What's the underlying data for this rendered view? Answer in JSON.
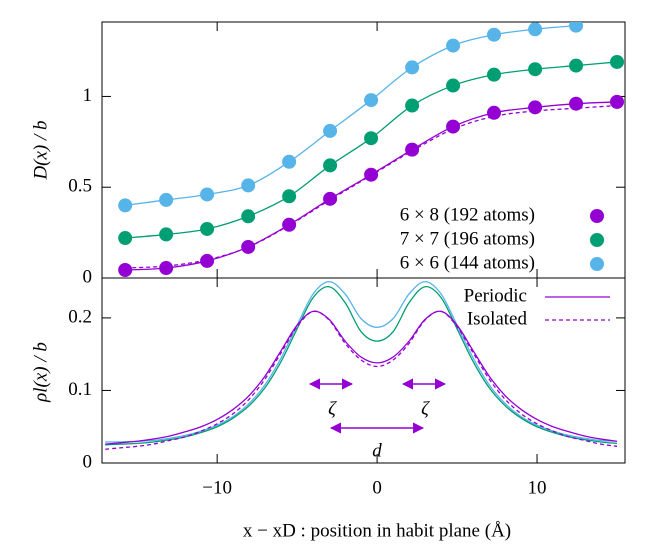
{
  "chart_data": [
    {
      "type": "line",
      "ylabel": "D(x) / b",
      "xlim": [
        -17.2,
        15.5
      ],
      "ylim": [
        0,
        1.41
      ],
      "xticks": [
        -10,
        0,
        10
      ],
      "yticks": [
        0,
        0.5,
        1
      ],
      "x": [
        -15.75,
        -13.19,
        -10.63,
        -8.06,
        -5.5,
        -2.94,
        -0.375,
        2.19,
        4.75,
        7.31,
        9.88,
        12.44,
        15.0
      ],
      "series": [
        {
          "name": "6 × 8  (192 atoms)",
          "color": "#9400d3",
          "markers": true,
          "values": [
            0.044,
            0.055,
            0.094,
            0.171,
            0.293,
            0.436,
            0.569,
            0.707,
            0.834,
            0.91,
            0.94,
            0.96,
            0.97
          ]
        },
        {
          "name": "7 × 7  (196 atoms)",
          "color": "#009e73",
          "markers": true,
          "values": [
            0.22,
            0.24,
            0.27,
            0.34,
            0.45,
            0.62,
            0.77,
            0.95,
            1.06,
            1.12,
            1.15,
            1.17,
            1.19
          ]
        },
        {
          "name": "6 × 6  (144 atoms)",
          "color": "#56b4e9",
          "markers": true,
          "values": [
            0.4,
            0.43,
            0.46,
            0.51,
            0.64,
            0.81,
            0.98,
            1.16,
            1.28,
            1.34,
            1.37,
            1.39,
            null
          ]
        },
        {
          "color": "#9400d3",
          "dash": true,
          "markers": false,
          "values": [
            0.055,
            0.066,
            0.1,
            0.17,
            0.29,
            0.43,
            0.565,
            0.7,
            0.82,
            0.89,
            0.92,
            0.935,
            0.95
          ]
        }
      ]
    },
    {
      "type": "line",
      "ylabel": "ρl(x) / b",
      "xlabel": "x − xD :  position in habit plane  (Å)",
      "xlim": [
        -17.2,
        15.5
      ],
      "ylim": [
        0,
        0.255
      ],
      "xticks": [
        -10,
        0,
        10
      ],
      "yticks": [
        0,
        0.1,
        0.2
      ],
      "annotations": [
        "ζ",
        "ζ",
        "d"
      ],
      "x": [
        -17,
        -16,
        -15,
        -14,
        -13,
        -12,
        -11,
        -10,
        -9,
        -8,
        -7,
        -6,
        -5,
        -4,
        -3,
        -2,
        -1,
        0,
        1,
        2,
        3,
        4,
        5,
        6,
        7,
        8,
        9,
        10,
        11,
        12,
        13,
        14,
        15
      ],
      "series": [
        {
          "color": "#56b4e9",
          "values": [
            0.029,
            0.029,
            0.03,
            0.031,
            0.034,
            0.038,
            0.044,
            0.052,
            0.064,
            0.082,
            0.108,
            0.145,
            0.19,
            0.233,
            0.25,
            0.233,
            0.199,
            0.187,
            0.199,
            0.233,
            0.25,
            0.233,
            0.19,
            0.145,
            0.108,
            0.082,
            0.064,
            0.052,
            0.044,
            0.038,
            0.034,
            0.031,
            0.03
          ]
        },
        {
          "color": "#009e73",
          "values": [
            0.025,
            0.026,
            0.027,
            0.029,
            0.032,
            0.036,
            0.042,
            0.05,
            0.062,
            0.079,
            0.104,
            0.14,
            0.185,
            0.228,
            0.243,
            0.221,
            0.181,
            0.168,
            0.181,
            0.221,
            0.243,
            0.228,
            0.185,
            0.14,
            0.104,
            0.079,
            0.062,
            0.05,
            0.042,
            0.036,
            0.032,
            0.029,
            0.027
          ]
        },
        {
          "name": "Periodic",
          "color": "#9400d3",
          "values": [
            0.026,
            0.028,
            0.03,
            0.033,
            0.037,
            0.043,
            0.05,
            0.06,
            0.074,
            0.093,
            0.12,
            0.155,
            0.19,
            0.209,
            0.198,
            0.168,
            0.146,
            0.138,
            0.146,
            0.168,
            0.198,
            0.209,
            0.19,
            0.155,
            0.12,
            0.093,
            0.074,
            0.06,
            0.05,
            0.043,
            0.037,
            0.033,
            0.03
          ]
        },
        {
          "name": "Isolated",
          "color": "#9400d3",
          "dash": true,
          "values": [
            0.019,
            0.021,
            0.023,
            0.026,
            0.031,
            0.036,
            0.044,
            0.054,
            0.068,
            0.088,
            0.116,
            0.152,
            0.188,
            0.209,
            0.197,
            0.165,
            0.142,
            0.133,
            0.142,
            0.165,
            0.197,
            0.209,
            0.188,
            0.152,
            0.116,
            0.088,
            0.068,
            0.054,
            0.044,
            0.036,
            0.031,
            0.026,
            0.023
          ]
        }
      ]
    }
  ]
}
